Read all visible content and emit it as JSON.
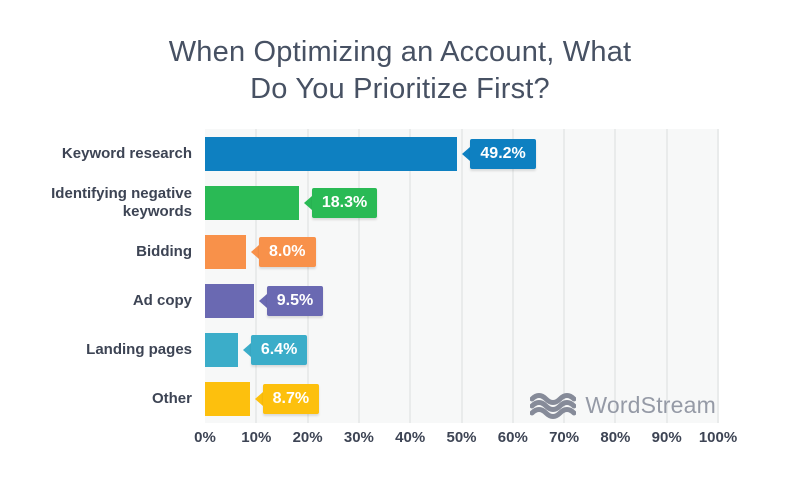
{
  "title": {
    "line1": "When Optimizing an Account, What",
    "line2": "Do You Prioritize First?"
  },
  "chart_data": {
    "type": "bar",
    "orientation": "horizontal",
    "title": "When Optimizing an Account, What Do You Prioritize First?",
    "categories": [
      "Keyword research",
      "Identifying negative keywords",
      "Bidding",
      "Ad copy",
      "Landing pages",
      "Other"
    ],
    "values": [
      49.2,
      18.3,
      8.0,
      9.5,
      6.4,
      8.7
    ],
    "value_labels": [
      "49.2%",
      "18.3%",
      "8.0%",
      "9.5%",
      "6.4%",
      "8.7%"
    ],
    "bar_colors": [
      "#0e80c1",
      "#2aba55",
      "#f8914a",
      "#6a69b2",
      "#3badc9",
      "#fdc00d"
    ],
    "xlabel": "",
    "ylabel": "",
    "xlim": [
      0,
      100
    ],
    "x_ticks": [
      "0%",
      "10%",
      "20%",
      "30%",
      "40%",
      "50%",
      "60%",
      "70%",
      "80%",
      "90%",
      "100%"
    ],
    "grid": "vertical",
    "legend": "none"
  },
  "watermark": {
    "text": "WordStream",
    "icon": "waves-icon",
    "icon_color": "#868b99",
    "text_color": "#959aa6"
  },
  "colors": {
    "background": "#ffffff",
    "plot_background": "#f7f8f8",
    "gridline": "#e9ebeb",
    "title_text": "#475163",
    "axis_text": "#3d4454",
    "value_text": "#ffffff"
  }
}
